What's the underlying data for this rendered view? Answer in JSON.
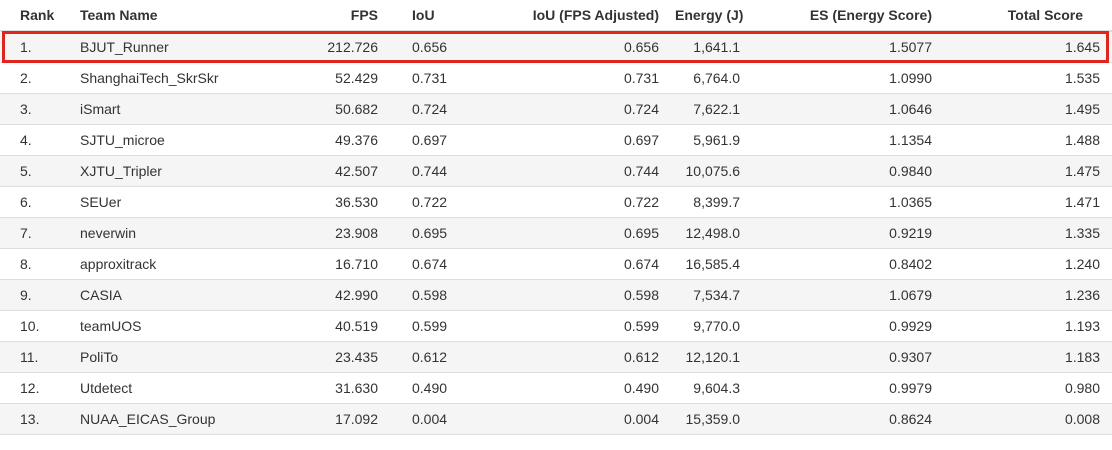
{
  "table": {
    "columns": [
      {
        "key": "rank",
        "label": "Rank"
      },
      {
        "key": "team",
        "label": "Team Name"
      },
      {
        "key": "fps",
        "label": "FPS"
      },
      {
        "key": "iou",
        "label": "IoU"
      },
      {
        "key": "iou-adj",
        "label": "IoU (FPS Adjusted)"
      },
      {
        "key": "energy",
        "label": "Energy (J)"
      },
      {
        "key": "es",
        "label": "ES (Energy Score)"
      },
      {
        "key": "total",
        "label": "Total Score"
      }
    ],
    "rows": [
      [
        "1.",
        "BJUT_Runner",
        "212.726",
        "0.656",
        "0.656",
        "1,641.1",
        "1.5077",
        "1.645"
      ],
      [
        "2.",
        "ShanghaiTech_SkrSkr",
        "52.429",
        "0.731",
        "0.731",
        "6,764.0",
        "1.0990",
        "1.535"
      ],
      [
        "3.",
        "iSmart",
        "50.682",
        "0.724",
        "0.724",
        "7,622.1",
        "1.0646",
        "1.495"
      ],
      [
        "4.",
        "SJTU_microe",
        "49.376",
        "0.697",
        "0.697",
        "5,961.9",
        "1.1354",
        "1.488"
      ],
      [
        "5.",
        "XJTU_Tripler",
        "42.507",
        "0.744",
        "0.744",
        "10,075.6",
        "0.9840",
        "1.475"
      ],
      [
        "6.",
        "SEUer",
        "36.530",
        "0.722",
        "0.722",
        "8,399.7",
        "1.0365",
        "1.471"
      ],
      [
        "7.",
        "neverwin",
        "23.908",
        "0.695",
        "0.695",
        "12,498.0",
        "0.9219",
        "1.335"
      ],
      [
        "8.",
        "approxitrack",
        "16.710",
        "0.674",
        "0.674",
        "16,585.4",
        "0.8402",
        "1.240"
      ],
      [
        "9.",
        "CASIA",
        "42.990",
        "0.598",
        "0.598",
        "7,534.7",
        "1.0679",
        "1.236"
      ],
      [
        "10.",
        "teamUOS",
        "40.519",
        "0.599",
        "0.599",
        "9,770.0",
        "0.9929",
        "1.193"
      ],
      [
        "11.",
        "PoliTo",
        "23.435",
        "0.612",
        "0.612",
        "12,120.1",
        "0.9307",
        "1.183"
      ],
      [
        "12.",
        "Utdetect",
        "31.630",
        "0.490",
        "0.490",
        "9,604.3",
        "0.9979",
        "0.980"
      ],
      [
        "13.",
        "NUAA_EICAS_Group",
        "17.092",
        "0.004",
        "0.004",
        "15,359.0",
        "0.8624",
        "0.008"
      ]
    ],
    "highlighted_row_index": 0
  },
  "colors": {
    "highlight_border": "#e2251c",
    "stripe_bg": "#f5f5f5",
    "row_border": "#dddddd",
    "text": "#333333"
  }
}
